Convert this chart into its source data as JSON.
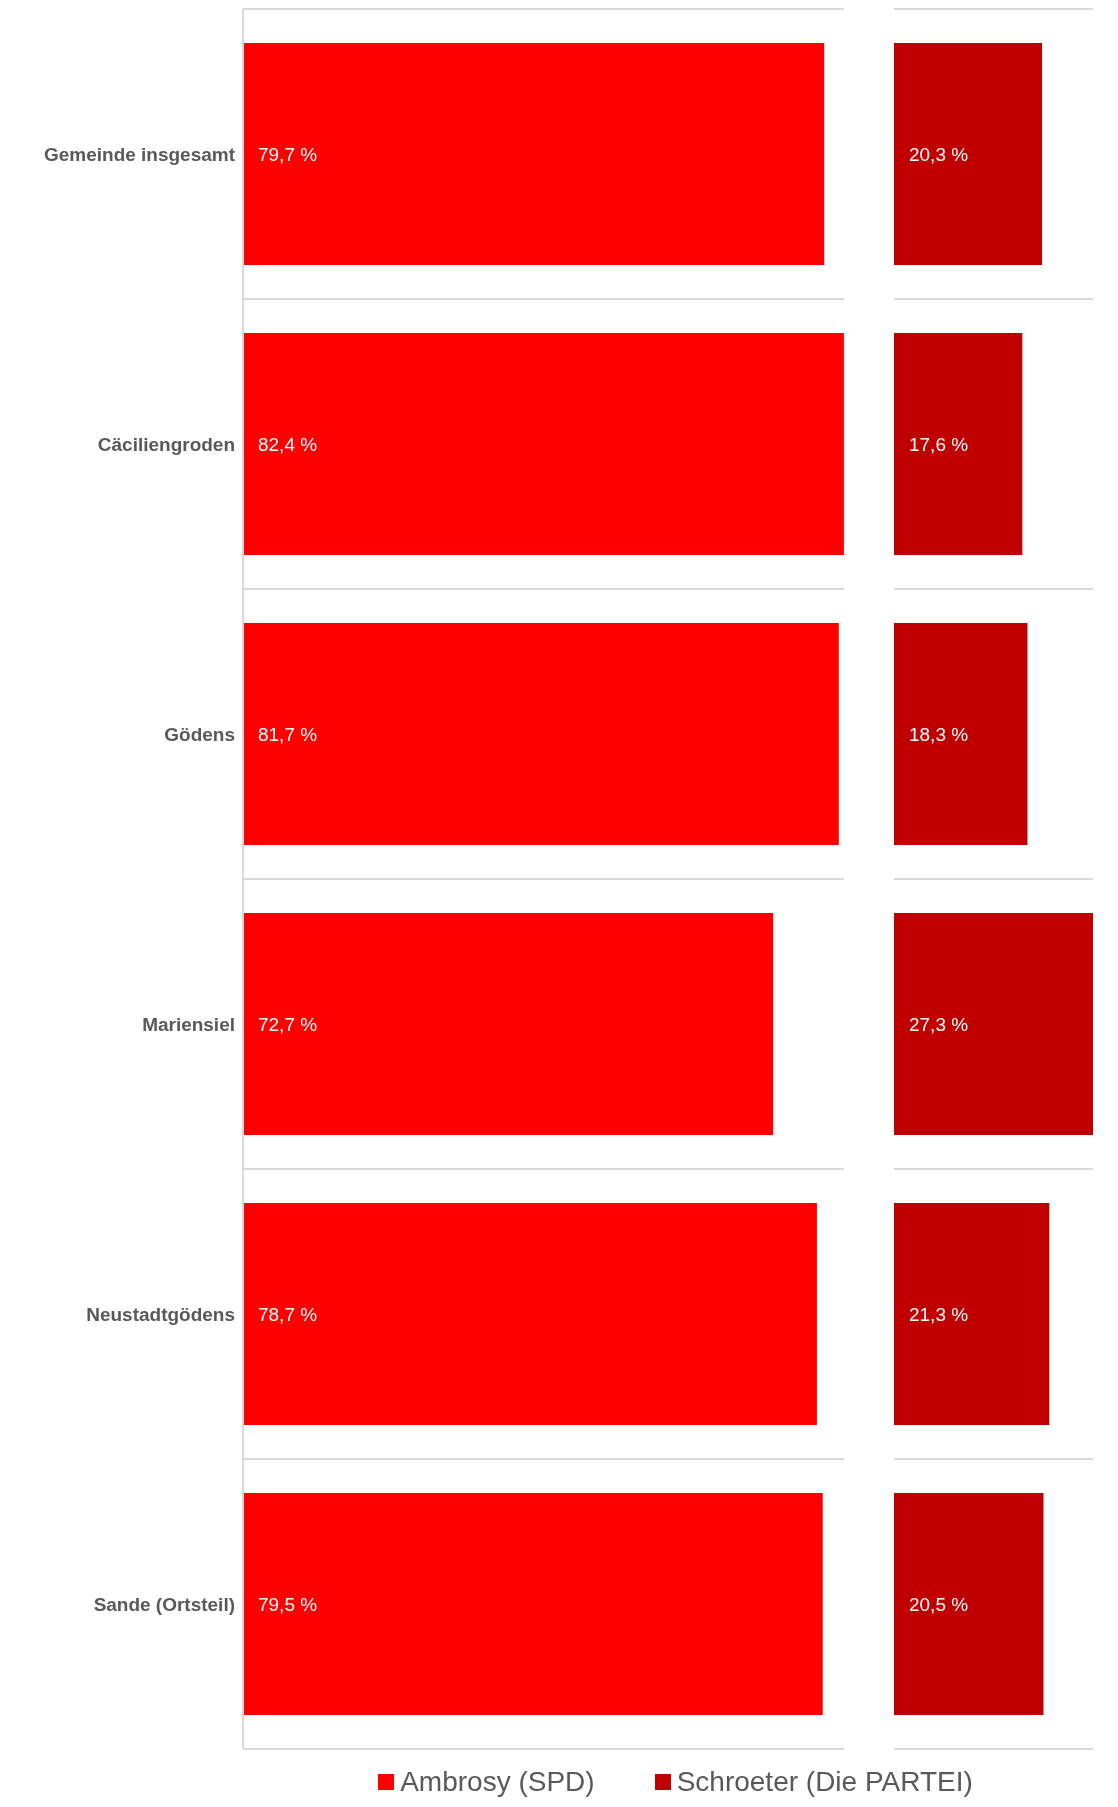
{
  "chart_data": [
    {
      "type": "bar",
      "orientation": "horizontal",
      "categories": [
        "Gemeinde insgesamt",
        "Cäciliengroden",
        "Gödens",
        "Mariensiel",
        "Neustadtgödens",
        "Sande (Ortsteil)"
      ],
      "series": [
        {
          "name": "Ambrosy (SPD)",
          "color": "#fe0000",
          "values": [
            79.7,
            82.4,
            81.7,
            72.7,
            78.7,
            79.5
          ],
          "value_labels": [
            "79,7 %",
            "82,4 %",
            "81,7 %",
            "72,7 %",
            "78,7 %",
            "79,5 %"
          ]
        }
      ],
      "grid": "y",
      "legend": "bottom"
    },
    {
      "type": "bar",
      "orientation": "horizontal",
      "tick_labels": false,
      "series": [
        {
          "name": "Schroeter (Die PARTEI)",
          "color": "#c00000",
          "values": [
            20.3,
            17.6,
            18.3,
            27.3,
            21.3,
            20.5
          ],
          "value_labels": [
            "20,3 %",
            "17,6 %",
            "18,3 %",
            "27,3 %",
            "21,3 %",
            "20,5 %"
          ]
        }
      ],
      "grid": "y",
      "legend": "bottom"
    }
  ]
}
